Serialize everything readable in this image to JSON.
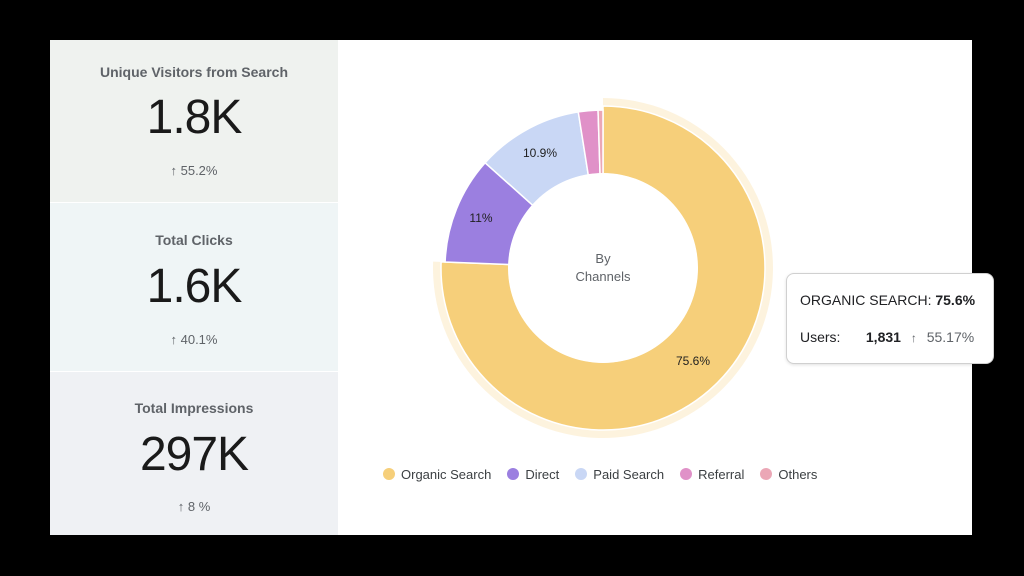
{
  "kpis": [
    {
      "title": "Unique Visitors from Search",
      "value": "1.8K",
      "delta": "↑ 55.2%",
      "trend": "up"
    },
    {
      "title": "Total Clicks",
      "value": "1.6K",
      "delta": "↑ 40.1%",
      "trend": "up"
    },
    {
      "title": "Total Impressions",
      "value": "297K",
      "delta": "↑ 8 %",
      "trend": "up"
    }
  ],
  "chart": {
    "center_line1": "By",
    "center_line2": "Channels",
    "labels": {
      "organic": "75.6%",
      "direct": "11%",
      "paid": "10.9%"
    }
  },
  "tooltip": {
    "title": "ORGANIC SEARCH:",
    "title_value": "75.6%",
    "users_label": "Users:",
    "users_value": "1,831",
    "arrow": "↑",
    "users_delta": "55.17%"
  },
  "legend": [
    {
      "label": "Organic Search",
      "color": "#f6cf7a"
    },
    {
      "label": "Direct",
      "color": "#9b7fe0"
    },
    {
      "label": "Paid Search",
      "color": "#c9d7f5"
    },
    {
      "label": "Referral",
      "color": "#e091c8"
    },
    {
      "label": "Others",
      "color": "#eba7b6"
    }
  ],
  "chart_data": {
    "type": "pie",
    "variant": "donut",
    "title": "By Channels",
    "categories": [
      "Organic Search",
      "Direct",
      "Paid Search",
      "Referral",
      "Others"
    ],
    "values": [
      75.6,
      11.0,
      10.9,
      2.0,
      0.5
    ],
    "colors": [
      "#f6cf7a",
      "#9b7fe0",
      "#c9d7f5",
      "#e091c8",
      "#eba7b6"
    ],
    "data_labels": [
      "75.6%",
      "11%",
      "10.9%",
      "",
      ""
    ],
    "highlighted": "Organic Search",
    "tooltip": {
      "series": "Organic Search",
      "share": "75.6%",
      "users": 1831,
      "users_change": "55.17%"
    },
    "legend_position": "bottom"
  }
}
